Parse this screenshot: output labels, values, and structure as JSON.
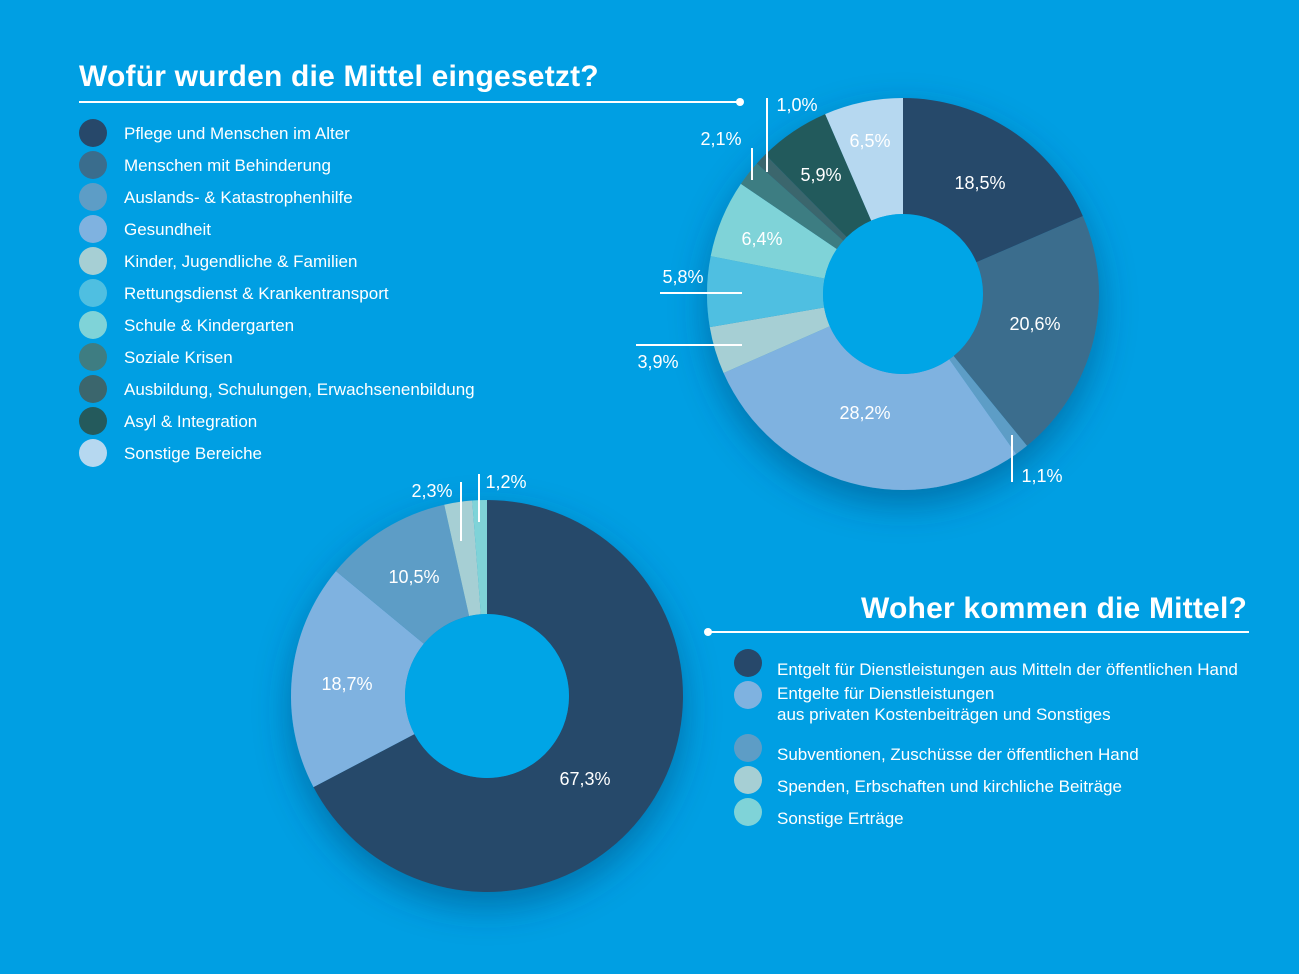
{
  "colors": {
    "background": "#009fe3",
    "text": "#ffffff",
    "hole": "#00a5e6"
  },
  "top_section": {
    "title": "Wofür wurden die Mittel eingesetzt?",
    "legend": [
      {
        "label": "Pflege und Menschen im Alter",
        "color": "#27486a"
      },
      {
        "label": "Menschen mit Behinderung",
        "color": "#3a6d8d"
      },
      {
        "label": "Auslands- & Katastrophenhilfe",
        "color": "#5d9dc6"
      },
      {
        "label": "Gesundheit",
        "color": "#7fb2e0"
      },
      {
        "label": "Kinder, Jugendliche & Familien",
        "color": "#a6cfd4"
      },
      {
        "label": "Rettungsdienst & Krankentransport",
        "color": "#4fbfe1"
      },
      {
        "label": "Schule & Kindergarten",
        "color": "#7fd3d8"
      },
      {
        "label": "Soziale Krisen",
        "color": "#3e7d82"
      },
      {
        "label": "Ausbildung, Schulungen, Erwachsenenbildung",
        "color": "#3b666d"
      },
      {
        "label": "Asyl & Integration",
        "color": "#245a5c"
      },
      {
        "label": "Sonstige Bereiche",
        "color": "#b6d8f0"
      }
    ]
  },
  "bottom_section": {
    "title": "Woher kommen die Mittel?",
    "legend": [
      {
        "label": "Entgelt für Dienstleistungen aus Mitteln der öffentlichen Hand",
        "label2": "",
        "color": "#27486a"
      },
      {
        "label": "Entgelte für Dienstleistungen",
        "label2": "aus privaten Kostenbeiträgen und Sonstiges",
        "color": "#7fb2e0"
      },
      {
        "label": "Subventionen, Zuschüsse der öffentlichen Hand",
        "label2": "",
        "color": "#5d9dc6"
      },
      {
        "label": "Spenden, Erbschaften und kirchliche Beiträge",
        "label2": "",
        "color": "#a6cfd4"
      },
      {
        "label": "Sonstige Erträge",
        "label2": "",
        "color": "#7fd3d8"
      }
    ]
  },
  "chart_data": [
    {
      "type": "pie",
      "variant": "donut",
      "title": "Wofür wurden die Mittel eingesetzt?",
      "start_angle_deg": 0,
      "direction": "clockwise",
      "slices": [
        {
          "name": "Pflege und Menschen im Alter",
          "value": 18.5,
          "label": "18,5%",
          "color": "#27486a"
        },
        {
          "name": "Menschen mit Behinderung",
          "value": 20.6,
          "label": "20,6%",
          "color": "#3a6d8d"
        },
        {
          "name": "Auslands- & Katastrophenhilfe",
          "value": 1.1,
          "label": "1,1%",
          "color": "#5d9dc6"
        },
        {
          "name": "Gesundheit",
          "value": 28.2,
          "label": "28,2%",
          "color": "#7fb2e0"
        },
        {
          "name": "Kinder, Jugendliche & Familien",
          "value": 3.9,
          "label": "3,9%",
          "color": "#a6cfd4"
        },
        {
          "name": "Rettungsdienst & Krankentransport",
          "value": 5.8,
          "label": "5,8%",
          "color": "#4fbfe1"
        },
        {
          "name": "Schule & Kindergarten",
          "value": 6.4,
          "label": "6,4%",
          "color": "#7fd3d8"
        },
        {
          "name": "Soziale Krisen",
          "value": 2.1,
          "label": "2,1%",
          "color": "#3e7d82"
        },
        {
          "name": "Ausbildung, Schulungen, Erwachsenenbildung",
          "value": 1.0,
          "label": "1,0%",
          "color": "#3b666d"
        },
        {
          "name": "Asyl & Integration",
          "value": 5.9,
          "label": "5,9%",
          "color": "#245a5c"
        },
        {
          "name": "Sonstige Bereiche",
          "value": 6.5,
          "label": "6,5%",
          "color": "#b6d8f0"
        }
      ]
    },
    {
      "type": "pie",
      "variant": "donut",
      "title": "Woher kommen die Mittel?",
      "start_angle_deg": 0,
      "direction": "clockwise",
      "slices": [
        {
          "name": "Entgelt für Dienstleistungen aus Mitteln der öffentlichen Hand",
          "value": 67.3,
          "label": "67,3%",
          "color": "#27486a"
        },
        {
          "name": "Entgelte für Dienstleistungen aus privaten Kostenbeiträgen und Sonstiges",
          "value": 18.7,
          "label": "18,7%",
          "color": "#7fb2e0"
        },
        {
          "name": "Subventionen, Zuschüsse der öffentlichen Hand",
          "value": 10.5,
          "label": "10,5%",
          "color": "#5d9dc6"
        },
        {
          "name": "Spenden, Erbschaften und kirchliche Beiträge",
          "value": 2.3,
          "label": "2,3%",
          "color": "#a6cfd4"
        },
        {
          "name": "Sonstige Erträge",
          "value": 1.2,
          "label": "1,2%",
          "color": "#7fd3d8"
        }
      ]
    }
  ]
}
